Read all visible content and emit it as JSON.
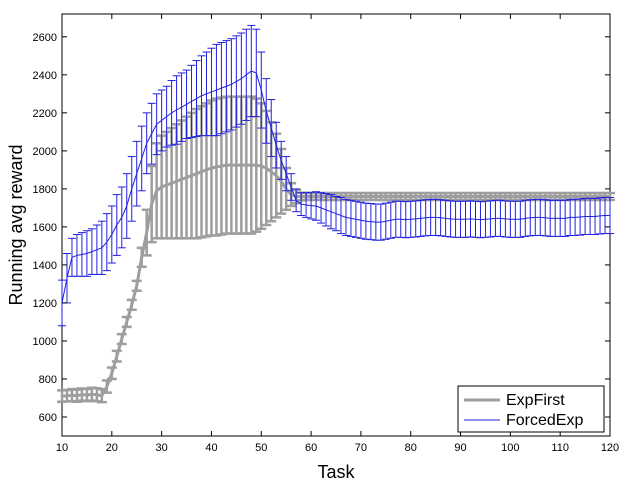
{
  "chart_data": {
    "type": "line",
    "xlabel": "Task",
    "ylabel": "Running avg reward",
    "xlim": [
      10,
      120
    ],
    "ylim": [
      500,
      2720
    ],
    "xticks": [
      10,
      20,
      30,
      40,
      50,
      60,
      70,
      80,
      90,
      100,
      110,
      120
    ],
    "yticks": [
      600,
      800,
      1000,
      1200,
      1400,
      1600,
      1800,
      2000,
      2200,
      2400,
      2600
    ],
    "legend_position": "bottom-right",
    "series": [
      {
        "name": "ExpFirst",
        "color": "#9e9e9e",
        "x": [
          10,
          11,
          12,
          13,
          14,
          15,
          16,
          17,
          18,
          19,
          20,
          21,
          22,
          23,
          24,
          25,
          26,
          27,
          28,
          29,
          30,
          31,
          32,
          33,
          34,
          35,
          36,
          37,
          38,
          39,
          40,
          41,
          42,
          43,
          44,
          45,
          46,
          47,
          48,
          49,
          50,
          51,
          52,
          53,
          54,
          55,
          56,
          57,
          58,
          59,
          60,
          61,
          62,
          63,
          64,
          65,
          66,
          67,
          68,
          69,
          70,
          71,
          72,
          73,
          74,
          75,
          76,
          77,
          78,
          79,
          80,
          81,
          82,
          83,
          84,
          85,
          86,
          87,
          88,
          89,
          90,
          91,
          92,
          93,
          94,
          95,
          96,
          97,
          98,
          99,
          100,
          101,
          102,
          103,
          104,
          105,
          106,
          107,
          108,
          109,
          110,
          111,
          112,
          113,
          114,
          115,
          116,
          117,
          118,
          119,
          120
        ],
        "y": [
          710,
          712,
          715,
          712,
          718,
          715,
          720,
          717,
          712,
          760,
          830,
          920,
          1010,
          1100,
          1190,
          1290,
          1440,
          1570,
          1720,
          1790,
          1810,
          1820,
          1830,
          1840,
          1850,
          1860,
          1870,
          1880,
          1890,
          1900,
          1910,
          1915,
          1920,
          1925,
          1925,
          1925,
          1925,
          1925,
          1925,
          1925,
          1920,
          1910,
          1890,
          1870,
          1840,
          1800,
          1770,
          1760,
          1760,
          1760,
          1760,
          1760,
          1760,
          1760,
          1760,
          1760,
          1760,
          1760,
          1760,
          1760,
          1760,
          1760,
          1760,
          1760,
          1760,
          1760,
          1760,
          1760,
          1760,
          1760,
          1760,
          1760,
          1760,
          1760,
          1760,
          1760,
          1760,
          1760,
          1760,
          1760,
          1760,
          1760,
          1760,
          1760,
          1760,
          1760,
          1760,
          1760,
          1760,
          1760,
          1760,
          1760,
          1760,
          1760,
          1760,
          1760,
          1760,
          1760,
          1760,
          1760,
          1760,
          1760,
          1760,
          1760,
          1760,
          1760,
          1760,
          1760,
          1760,
          1760,
          1760
        ],
        "err": [
          30,
          30,
          32,
          32,
          32,
          32,
          34,
          34,
          34,
          32,
          30,
          28,
          26,
          26,
          26,
          26,
          50,
          120,
          200,
          250,
          270,
          280,
          290,
          300,
          310,
          320,
          330,
          340,
          345,
          350,
          355,
          360,
          360,
          360,
          360,
          360,
          360,
          360,
          360,
          350,
          330,
          300,
          260,
          220,
          170,
          110,
          60,
          35,
          20,
          18,
          18,
          18,
          18,
          18,
          18,
          18,
          18,
          18,
          18,
          18,
          18,
          18,
          18,
          18,
          18,
          18,
          18,
          18,
          18,
          18,
          18,
          18,
          18,
          18,
          18,
          18,
          18,
          18,
          18,
          18,
          18,
          18,
          18,
          18,
          18,
          18,
          18,
          18,
          18,
          18,
          18,
          18,
          18,
          18,
          18,
          18,
          18,
          18,
          18,
          18,
          18,
          18,
          18,
          18,
          18,
          18,
          18,
          18,
          18,
          18,
          18
        ]
      },
      {
        "name": "ForcedExp",
        "color": "#2020e0",
        "x": [
          10,
          11,
          12,
          13,
          14,
          15,
          16,
          17,
          18,
          19,
          20,
          21,
          22,
          23,
          24,
          25,
          26,
          27,
          28,
          29,
          30,
          31,
          32,
          33,
          34,
          35,
          36,
          37,
          38,
          39,
          40,
          41,
          42,
          43,
          44,
          45,
          46,
          47,
          48,
          49,
          50,
          51,
          52,
          53,
          54,
          55,
          56,
          57,
          58,
          59,
          60,
          61,
          62,
          63,
          64,
          65,
          66,
          67,
          68,
          69,
          70,
          71,
          72,
          73,
          74,
          75,
          76,
          77,
          78,
          79,
          80,
          81,
          82,
          83,
          84,
          85,
          86,
          87,
          88,
          89,
          90,
          91,
          92,
          93,
          94,
          95,
          96,
          97,
          98,
          99,
          100,
          101,
          102,
          103,
          104,
          105,
          106,
          107,
          108,
          109,
          110,
          111,
          112,
          113,
          114,
          115,
          116,
          117,
          118,
          119,
          120
        ],
        "y": [
          1200,
          1330,
          1440,
          1450,
          1455,
          1460,
          1470,
          1480,
          1490,
          1520,
          1560,
          1610,
          1650,
          1710,
          1800,
          1880,
          1960,
          2040,
          2090,
          2140,
          2160,
          2180,
          2200,
          2215,
          2230,
          2245,
          2260,
          2275,
          2290,
          2300,
          2310,
          2320,
          2330,
          2340,
          2350,
          2365,
          2380,
          2400,
          2420,
          2410,
          2320,
          2210,
          2120,
          2030,
          1950,
          1880,
          1810,
          1740,
          1720,
          1715,
          1712,
          1710,
          1700,
          1690,
          1680,
          1670,
          1660,
          1650,
          1645,
          1640,
          1635,
          1630,
          1628,
          1625,
          1625,
          1630,
          1635,
          1640,
          1640,
          1638,
          1640,
          1642,
          1645,
          1648,
          1650,
          1650,
          1648,
          1645,
          1642,
          1640,
          1640,
          1640,
          1642,
          1640,
          1638,
          1640,
          1642,
          1645,
          1645,
          1642,
          1640,
          1640,
          1640,
          1645,
          1648,
          1650,
          1650,
          1648,
          1645,
          1645,
          1645,
          1645,
          1650,
          1650,
          1652,
          1655,
          1655,
          1655,
          1658,
          1660,
          1660
        ],
        "err": [
          120,
          130,
          100,
          110,
          115,
          120,
          120,
          130,
          140,
          150,
          150,
          160,
          160,
          170,
          170,
          170,
          170,
          160,
          160,
          160,
          160,
          160,
          170,
          180,
          180,
          180,
          190,
          200,
          210,
          220,
          230,
          240,
          240,
          240,
          240,
          240,
          240,
          240,
          240,
          230,
          200,
          170,
          150,
          120,
          100,
          90,
          70,
          60,
          60,
          65,
          70,
          75,
          80,
          85,
          90,
          90,
          95,
          95,
          95,
          95,
          95,
          95,
          95,
          95,
          95,
          95,
          95,
          95,
          95,
          95,
          95,
          95,
          95,
          95,
          95,
          95,
          95,
          95,
          95,
          95,
          95,
          95,
          95,
          95,
          95,
          95,
          95,
          95,
          95,
          95,
          95,
          95,
          95,
          95,
          95,
          95,
          95,
          95,
          95,
          95,
          95,
          95,
          95,
          95,
          95,
          95,
          95,
          95,
          95,
          95,
          95
        ]
      }
    ]
  }
}
